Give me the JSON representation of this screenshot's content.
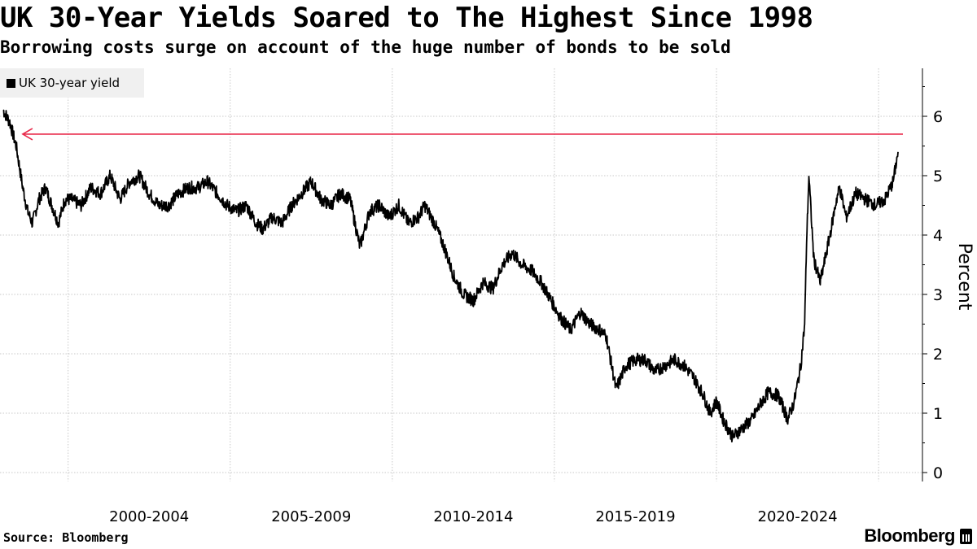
{
  "header": {
    "title": "UK 30-Year Yields Soared to The Highest Since 1998",
    "subtitle": "Borrowing costs surge on account of the huge number of bonds to be sold"
  },
  "footer": {
    "source": "Source: Bloomberg",
    "brand": "Bloomberg"
  },
  "colors": {
    "line": "#000000",
    "reference": "#e8294a",
    "grid": "#c8c8c8",
    "legend_bg": "#f0f0f0"
  },
  "chart_data": {
    "type": "line",
    "title": "UK 30-Year Yields Soared to The Highest Since 1998",
    "subtitle": "Borrowing costs surge on account of the huge number of bonds to be sold",
    "xlabel": "",
    "ylabel": "Percent",
    "ylim": [
      0,
      6.5
    ],
    "xlim": [
      1998.0,
      2025.7
    ],
    "yticks": [
      0,
      1,
      2,
      3,
      4,
      5,
      6
    ],
    "xticks": [
      2000,
      2005,
      2010,
      2015,
      2020,
      2025
    ],
    "xtick_labels": [
      {
        "label": "2000-2004",
        "center": 2002.5
      },
      {
        "label": "2005-2009",
        "center": 2007.5
      },
      {
        "label": "2010-2014",
        "center": 2012.5
      },
      {
        "label": "2015-2019",
        "center": 2017.5
      },
      {
        "label": "2020-2024",
        "center": 2022.5
      }
    ],
    "grid": true,
    "legend": {
      "position": "top-left",
      "entries": [
        "UK 30-year yield"
      ]
    },
    "reference_line": {
      "y": 5.7,
      "annotation": "arrow pointing left"
    },
    "series": [
      {
        "name": "UK 30-year yield",
        "x": [
          1998.0,
          1998.2,
          1998.4,
          1998.6,
          1998.75,
          1998.9,
          1999.1,
          1999.3,
          1999.5,
          1999.7,
          1999.9,
          2000.1,
          2000.4,
          2000.7,
          2001.0,
          2001.3,
          2001.6,
          2001.9,
          2002.2,
          2002.5,
          2002.8,
          2003.1,
          2003.4,
          2003.7,
          2004.0,
          2004.3,
          2004.6,
          2004.9,
          2005.2,
          2005.5,
          2005.8,
          2006.0,
          2006.3,
          2006.6,
          2006.9,
          2007.2,
          2007.5,
          2007.8,
          2008.1,
          2008.4,
          2008.7,
          2008.85,
          2009.0,
          2009.3,
          2009.6,
          2009.9,
          2010.2,
          2010.5,
          2010.8,
          2011.0,
          2011.3,
          2011.6,
          2011.9,
          2012.2,
          2012.5,
          2012.8,
          2013.1,
          2013.4,
          2013.7,
          2014.0,
          2014.3,
          2014.6,
          2014.9,
          2015.2,
          2015.5,
          2015.8,
          2016.1,
          2016.4,
          2016.6,
          2016.9,
          2017.2,
          2017.5,
          2017.8,
          2018.1,
          2018.4,
          2018.7,
          2019.0,
          2019.3,
          2019.6,
          2019.8,
          2020.0,
          2020.2,
          2020.5,
          2020.8,
          2021.1,
          2021.4,
          2021.6,
          2021.9,
          2022.2,
          2022.4,
          2022.6,
          2022.72,
          2022.78,
          2022.85,
          2023.0,
          2023.2,
          2023.5,
          2023.7,
          2023.8,
          2024.0,
          2024.3,
          2024.6,
          2024.9,
          2025.2,
          2025.45,
          2025.6
        ],
        "values": [
          6.1,
          5.9,
          5.5,
          4.8,
          4.4,
          4.2,
          4.6,
          4.8,
          4.5,
          4.2,
          4.6,
          4.6,
          4.5,
          4.8,
          4.7,
          5.0,
          4.6,
          4.9,
          5.0,
          4.7,
          4.5,
          4.5,
          4.7,
          4.8,
          4.8,
          4.9,
          4.7,
          4.5,
          4.4,
          4.5,
          4.2,
          4.1,
          4.3,
          4.2,
          4.5,
          4.7,
          4.9,
          4.6,
          4.5,
          4.7,
          4.6,
          4.2,
          3.8,
          4.4,
          4.5,
          4.3,
          4.5,
          4.2,
          4.3,
          4.5,
          4.2,
          3.8,
          3.3,
          3.0,
          2.9,
          3.2,
          3.1,
          3.5,
          3.7,
          3.5,
          3.4,
          3.2,
          2.9,
          2.6,
          2.4,
          2.7,
          2.5,
          2.4,
          2.3,
          1.4,
          1.8,
          1.9,
          1.9,
          1.7,
          1.8,
          1.9,
          1.8,
          1.6,
          1.3,
          1.0,
          1.2,
          0.9,
          0.6,
          0.75,
          0.9,
          1.2,
          1.35,
          1.3,
          0.9,
          1.2,
          1.8,
          2.5,
          3.9,
          5.0,
          3.6,
          3.2,
          4.0,
          4.6,
          4.8,
          4.3,
          4.7,
          4.6,
          4.5,
          4.6,
          4.9,
          5.4
        ]
      }
    ]
  }
}
